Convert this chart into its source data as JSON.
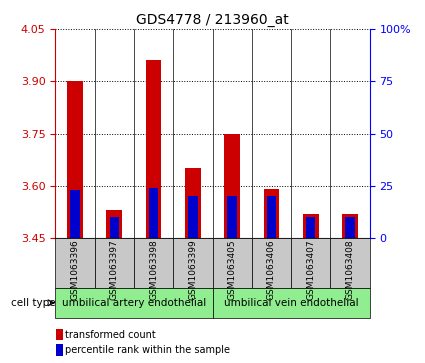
{
  "title": "GDS4778 / 213960_at",
  "samples": [
    "GSM1063396",
    "GSM1063397",
    "GSM1063398",
    "GSM1063399",
    "GSM1063405",
    "GSM1063406",
    "GSM1063407",
    "GSM1063408"
  ],
  "transformed_count": [
    3.9,
    3.53,
    3.96,
    3.65,
    3.75,
    3.59,
    3.52,
    3.52
  ],
  "percentile_rank": [
    23,
    10,
    24,
    20,
    20,
    20,
    10,
    10
  ],
  "ylim_left": [
    3.45,
    4.05
  ],
  "yticks_left": [
    3.45,
    3.6,
    3.75,
    3.9,
    4.05
  ],
  "yticks_right": [
    0,
    25,
    50,
    75,
    100
  ],
  "ylim_right": [
    0,
    100
  ],
  "bar_color_red": "#cc0000",
  "bar_color_blue": "#0000cc",
  "label_bg": "#c8c8c8",
  "group1_color": "#90ee90",
  "group2_color": "#90ee90",
  "cell_type_groups": [
    {
      "label": "umbilical artery endothelial",
      "indices": [
        0,
        1,
        2,
        3
      ]
    },
    {
      "label": "umbilical vein endothelial",
      "indices": [
        4,
        5,
        6,
        7
      ]
    }
  ],
  "cell_type_label": "cell type",
  "legend_items": [
    {
      "color": "#cc0000",
      "label": "transformed count"
    },
    {
      "color": "#0000cc",
      "label": "percentile rank within the sample"
    }
  ],
  "bar_width": 0.4,
  "blue_bar_width": 0.24,
  "base_value": 3.45
}
